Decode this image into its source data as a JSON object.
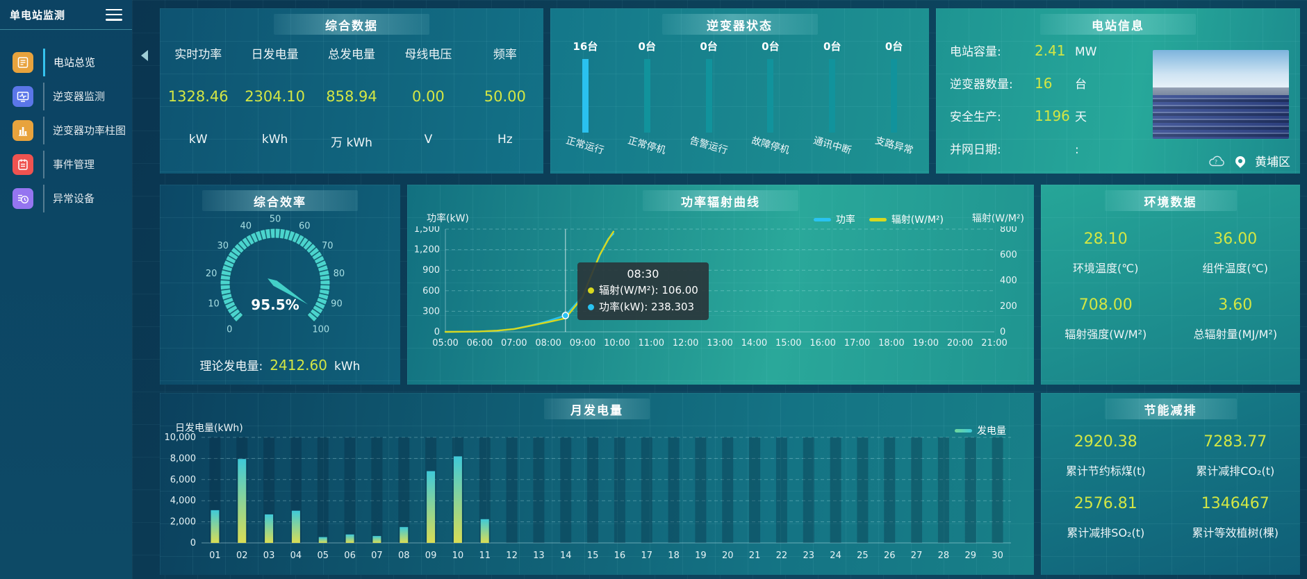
{
  "sidebar": {
    "title": "单电站监测",
    "items": [
      {
        "label": "电站总览",
        "icon": "overview-icon",
        "color": "#e8a33d",
        "active": true
      },
      {
        "label": "逆变器监测",
        "icon": "inverter-monitor-icon",
        "color": "#5b76e8",
        "active": false
      },
      {
        "label": "逆变器功率柱图",
        "icon": "power-bars-icon",
        "color": "#e8a33d",
        "active": false
      },
      {
        "label": "事件管理",
        "icon": "event-icon",
        "color": "#ef5350",
        "active": false
      },
      {
        "label": "异常设备",
        "icon": "abnormal-device-icon",
        "color": "#9575f0",
        "active": false
      }
    ]
  },
  "summary": {
    "title": "综合数据",
    "metrics": [
      {
        "label": "实时功率",
        "value": "1328.46",
        "unit": "kW"
      },
      {
        "label": "日发电量",
        "value": "2304.10",
        "unit": "kWh"
      },
      {
        "label": "总发电量",
        "value": "858.94",
        "unit": "万 kWh"
      },
      {
        "label": "母线电压",
        "value": "0.00",
        "unit": "V"
      },
      {
        "label": "频率",
        "value": "50.00",
        "unit": "Hz"
      }
    ]
  },
  "inverter_status": {
    "title": "逆变器状态",
    "bar_color": "#11939c",
    "highlight_color": "#2ac1ef",
    "items": [
      {
        "count": "16台",
        "label": "正常运行",
        "highlight": true
      },
      {
        "count": "0台",
        "label": "正常停机",
        "highlight": false
      },
      {
        "count": "0台",
        "label": "告警运行",
        "highlight": false
      },
      {
        "count": "0台",
        "label": "故障停机",
        "highlight": false
      },
      {
        "count": "0台",
        "label": "通讯中断",
        "highlight": false
      },
      {
        "count": "0台",
        "label": "支路异常",
        "highlight": false
      }
    ]
  },
  "station_info": {
    "title": "电站信息",
    "rows": [
      {
        "label": "电站容量:",
        "value": "2.41",
        "unit": "MW"
      },
      {
        "label": "逆变器数量:",
        "value": "16",
        "unit": "台"
      },
      {
        "label": "安全生产:",
        "value": "1196",
        "unit": "天"
      },
      {
        "label": "并网日期:",
        "value": "",
        "unit": ":"
      }
    ],
    "location": "黄埔区"
  },
  "efficiency": {
    "theoretical_label": "理论发电量:",
    "theoretical_value": "2412.60",
    "theoretical_unit": "kWh"
  },
  "env_data": {
    "title": "环境数据",
    "metrics": [
      {
        "value": "28.10",
        "label": "环境温度(℃)"
      },
      {
        "value": "36.00",
        "label": "组件温度(℃)"
      },
      {
        "value": "708.00",
        "label": "辐射强度(W/M²)"
      },
      {
        "value": "3.60",
        "label": "总辐射量(MJ/M²)"
      }
    ]
  },
  "saving": {
    "title": "节能减排",
    "metrics": [
      {
        "value": "2920.38",
        "label": "累计节约标煤(t)"
      },
      {
        "value": "7283.77",
        "label": "累计减排CO₂(t)"
      },
      {
        "value": "2576.81",
        "label": "累计减排SO₂(t)"
      },
      {
        "value": "1346467",
        "label": "累计等效植树(棵)"
      }
    ]
  },
  "chart_data": [
    {
      "id": "efficiency_gauge",
      "type": "gauge",
      "title": "综合效率",
      "value": 95.5,
      "display": "95.5%",
      "min": 0,
      "max": 100,
      "tick_labels": [
        0,
        10,
        20,
        30,
        40,
        50,
        60,
        70,
        80,
        90,
        100
      ],
      "ring_color": "#4bd4cd",
      "needle_color": "#43cfc7"
    },
    {
      "id": "power_radiation",
      "type": "line",
      "title": "功率辐射曲线",
      "x_range": [
        5,
        21
      ],
      "x_labels": [
        "05:00",
        "06:00",
        "07:00",
        "08:00",
        "09:00",
        "10:00",
        "11:00",
        "12:00",
        "13:00",
        "14:00",
        "15:00",
        "16:00",
        "17:00",
        "18:00",
        "19:00",
        "20:00",
        "21:00"
      ],
      "left_axis": {
        "title": "功率(kW)",
        "max": 1500,
        "ticks": [
          "1,500",
          "1,200",
          "900",
          "600",
          "300",
          "0"
        ]
      },
      "right_axis": {
        "title": "辐射(W/M²)",
        "max": 800,
        "ticks": [
          "800",
          "600",
          "400",
          "200",
          "0"
        ]
      },
      "legend": [
        {
          "label": "功率",
          "color": "#29c3f1"
        },
        {
          "label": "辐射(W/M²)",
          "color": "#d8d81f"
        }
      ],
      "series": [
        {
          "name": "功率",
          "color": "#29c3f1",
          "axis": "left",
          "points": [
            [
              5,
              0
            ],
            [
              5.5,
              2
            ],
            [
              6,
              6
            ],
            [
              6.5,
              16
            ],
            [
              7,
              42
            ],
            [
              7.5,
              95
            ],
            [
              8,
              160
            ],
            [
              8.5,
              238.303
            ],
            [
              9,
              520
            ],
            [
              9.25,
              820
            ],
            [
              9.5,
              1120
            ],
            [
              9.75,
              1360
            ],
            [
              9.9,
              1430
            ]
          ]
        },
        {
          "name": "辐射(W/M²)",
          "color": "#d8d81f",
          "axis": "right",
          "points": [
            [
              5,
              0
            ],
            [
              5.5,
              1
            ],
            [
              6,
              3
            ],
            [
              6.5,
              9
            ],
            [
              7,
              22
            ],
            [
              7.5,
              48
            ],
            [
              8,
              76
            ],
            [
              8.5,
              106
            ],
            [
              9,
              270
            ],
            [
              9.25,
              440
            ],
            [
              9.5,
              600
            ],
            [
              9.75,
              720
            ],
            [
              9.9,
              780
            ]
          ]
        }
      ],
      "crosshair_x": 8.5,
      "marker": {
        "x": 8.5,
        "value": 238.303,
        "color": "#29c3f1"
      },
      "tooltip": {
        "time": "08:30",
        "rows": [
          {
            "label": "辐射(W/M²)",
            "value": "106.00",
            "color": "#d8d81f"
          },
          {
            "label": "功率(kW)",
            "value": "238.303",
            "color": "#29c3f1"
          }
        ]
      }
    },
    {
      "id": "monthly_generation",
      "type": "bar",
      "title": "月发电量",
      "axis_title": "日发电量(kWh)",
      "legend": [
        {
          "label": "发电量",
          "color": "#6fd89b"
        }
      ],
      "categories": [
        "01",
        "02",
        "03",
        "04",
        "05",
        "06",
        "07",
        "08",
        "09",
        "10",
        "11",
        "12",
        "13",
        "14",
        "15",
        "16",
        "17",
        "18",
        "19",
        "20",
        "21",
        "22",
        "23",
        "24",
        "25",
        "26",
        "27",
        "28",
        "29",
        "30"
      ],
      "values": [
        3100,
        7950,
        2700,
        3050,
        550,
        800,
        650,
        1500,
        6800,
        8200,
        2250,
        0,
        0,
        0,
        0,
        0,
        0,
        0,
        0,
        0,
        0,
        0,
        0,
        0,
        0,
        0,
        0,
        0,
        0,
        0
      ],
      "y_max": 10000,
      "y_ticks": [
        "10,000",
        "8,000",
        "6,000",
        "4,000",
        "2,000",
        "0"
      ],
      "bar_gradient": [
        "#3fc9d8",
        "#d9dd55"
      ]
    }
  ]
}
